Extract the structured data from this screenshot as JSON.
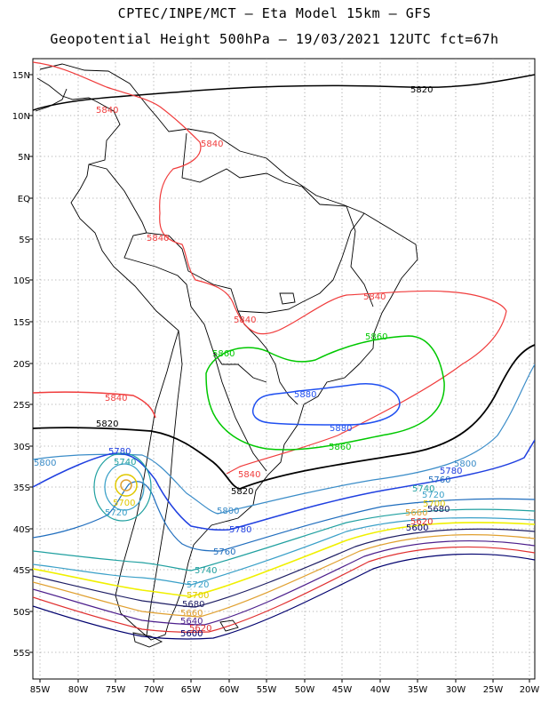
{
  "title_line1": "CPTEC/INPE/MCT –  Eta Model 15km – GFS",
  "title_line2": "Geopotential Height 500hPa – 19/03/2021 12UTC fct=67h",
  "lat_labels": [
    "15N",
    "10N",
    "5N",
    "EQ",
    "5S",
    "10S",
    "15S",
    "20S",
    "25S",
    "30S",
    "35S",
    "40S",
    "45S",
    "50S",
    "55S"
  ],
  "lon_labels": [
    "85W",
    "80W",
    "75W",
    "70W",
    "65W",
    "60W",
    "55W",
    "50W",
    "45W",
    "40W",
    "35W",
    "30W",
    "25W",
    "20W"
  ],
  "contour_colors": {
    "5500": "#00006e",
    "5540": "#4c1f8c",
    "5620": "#e03030",
    "5660": "#e0a030",
    "5700": "#f0f000",
    "5720": "#3aa0c8",
    "5740": "#20a0a0",
    "5760": "#206ebe",
    "5780": "#2040e0",
    "5800": "#3a8cc8",
    "5820": "#000000",
    "5840": "#f03c3c",
    "5860": "#00c800",
    "5880": "#2050f0",
    "5900": "#e03030"
  },
  "contour_labels": [
    {
      "text": "5820",
      "color": "#000000"
    },
    {
      "text": "5840",
      "color": "#f03c3c"
    },
    {
      "text": "5840",
      "color": "#f03c3c"
    },
    {
      "text": "5840",
      "color": "#f03c3c"
    },
    {
      "text": "5840",
      "color": "#f03c3c"
    },
    {
      "text": "5840",
      "color": "#f03c3c"
    },
    {
      "text": "5840",
      "color": "#f03c3c"
    },
    {
      "text": "5840",
      "color": "#f03c3c"
    },
    {
      "text": "5860",
      "color": "#00c800"
    },
    {
      "text": "5860",
      "color": "#00c800"
    },
    {
      "text": "5860",
      "color": "#00c800"
    },
    {
      "text": "5880",
      "color": "#2050f0"
    },
    {
      "text": "5880",
      "color": "#2050f0"
    },
    {
      "text": "5820",
      "color": "#000000"
    },
    {
      "text": "5820",
      "color": "#000000"
    },
    {
      "text": "5800",
      "color": "#3a8cc8"
    },
    {
      "text": "5800",
      "color": "#3a8cc8"
    },
    {
      "text": "5800",
      "color": "#3a8cc8"
    },
    {
      "text": "5780",
      "color": "#2040e0"
    },
    {
      "text": "5780",
      "color": "#2040e0"
    },
    {
      "text": "5780",
      "color": "#2040e0"
    },
    {
      "text": "5760",
      "color": "#206ebe"
    },
    {
      "text": "5760",
      "color": "#206ebe"
    },
    {
      "text": "5740",
      "color": "#20a0a0"
    },
    {
      "text": "5740",
      "color": "#20a0a0"
    },
    {
      "text": "5740",
      "color": "#20a0a0"
    },
    {
      "text": "5720",
      "color": "#3aa0c8"
    },
    {
      "text": "5720",
      "color": "#3aa0c8"
    },
    {
      "text": "5720",
      "color": "#3aa0c8"
    },
    {
      "text": "5700",
      "color": "#e0c800"
    },
    {
      "text": "5700",
      "color": "#e0c800"
    },
    {
      "text": "5700",
      "color": "#e0c800"
    },
    {
      "text": "5680",
      "color": "#1e1e64"
    },
    {
      "text": "5680",
      "color": "#1e1e64"
    },
    {
      "text": "5660",
      "color": "#e0a030"
    },
    {
      "text": "5660",
      "color": "#e0a030"
    },
    {
      "text": "5640",
      "color": "#4c1f8c"
    },
    {
      "text": "5620",
      "color": "#e03030"
    },
    {
      "text": "5620",
      "color": "#e03030"
    },
    {
      "text": "5600",
      "color": "#00006e"
    },
    {
      "text": "5600",
      "color": "#00006e"
    }
  ]
}
